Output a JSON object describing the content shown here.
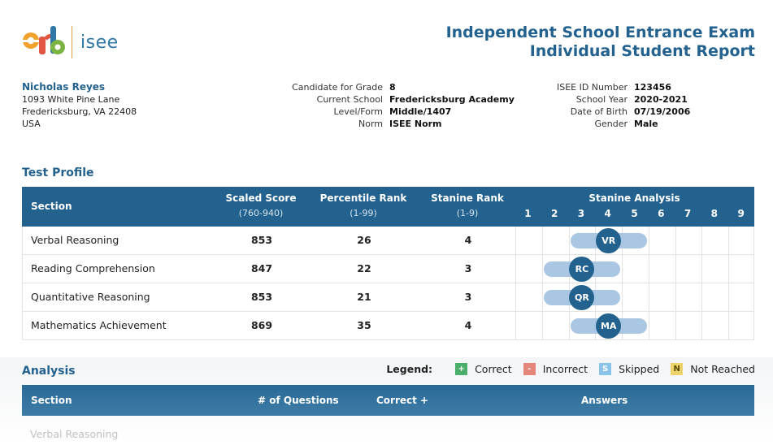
{
  "brand": {
    "logo_letters": "erb",
    "product": "isee",
    "accent": "#23628f"
  },
  "report": {
    "title_line1": "Independent School Entrance Exam",
    "title_line2": "Individual Student Report"
  },
  "student": {
    "name": "Nicholas Reyes",
    "address1": "1093 White Pine Lane",
    "address2": "Fredericksburg, VA 22408",
    "country": "USA"
  },
  "exam_info": [
    {
      "label": "Candidate for Grade",
      "value": "8"
    },
    {
      "label": "Current School",
      "value": "Fredericksburg Academy"
    },
    {
      "label": "Level/Form",
      "value": "Middle/1407"
    },
    {
      "label": "Norm",
      "value": "ISEE Norm"
    }
  ],
  "id_info": [
    {
      "label": "ISEE ID Number",
      "value": "123456"
    },
    {
      "label": "School Year",
      "value": "2020-2021"
    },
    {
      "label": "Date of Birth",
      "value": "07/19/2006"
    },
    {
      "label": "Gender",
      "value": "Male"
    }
  ],
  "test_profile": {
    "title": "Test Profile",
    "headers": {
      "section": "Section",
      "scaled": "Scaled Score",
      "scaled_range": "(760-940)",
      "percentile": "Percentile Rank",
      "percentile_range": "(1-99)",
      "stanine": "Stanine Rank",
      "stanine_range": "(1-9)",
      "analysis": "Stanine Analysis",
      "stanine_scale": [
        "1",
        "2",
        "3",
        "4",
        "5",
        "6",
        "7",
        "8",
        "9"
      ]
    },
    "rows": [
      {
        "section": "Verbal Reasoning",
        "scaled": "853",
        "percentile": "26",
        "stanine": "4",
        "abbr": "VR",
        "band_low": 3,
        "band_high": 5
      },
      {
        "section": "Reading Comprehension",
        "scaled": "847",
        "percentile": "22",
        "stanine": "3",
        "abbr": "RC",
        "band_low": 2,
        "band_high": 4
      },
      {
        "section": "Quantitative Reasoning",
        "scaled": "853",
        "percentile": "21",
        "stanine": "3",
        "abbr": "QR",
        "band_low": 2,
        "band_high": 4
      },
      {
        "section": "Mathematics Achievement",
        "scaled": "869",
        "percentile": "35",
        "stanine": "4",
        "abbr": "MA",
        "band_low": 3,
        "band_high": 5
      }
    ]
  },
  "analysis": {
    "title": "Analysis",
    "legend_label": "Legend:",
    "legend": [
      {
        "symbol": "+",
        "label": "Correct",
        "color": "#4cae6b"
      },
      {
        "symbol": "-",
        "label": "Incorrect",
        "color": "#e6857a"
      },
      {
        "symbol": "S",
        "label": "Skipped",
        "color": "#89c3ea"
      },
      {
        "symbol": "N",
        "label": "Not Reached",
        "color": "#ecd46a"
      }
    ],
    "headers": {
      "section": "Section",
      "questions": "# of Questions",
      "correct": "Correct +",
      "answers": "Answers"
    },
    "first_row": "Verbal Reasoning"
  }
}
